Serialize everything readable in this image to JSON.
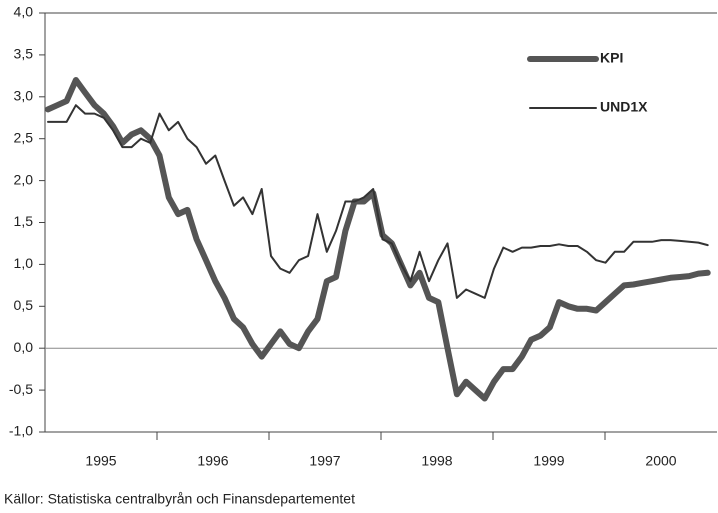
{
  "chart_data": {
    "type": "line",
    "source": "Källor: Statistiska centralbyrån och Finansdepartementet",
    "categories": [
      "1995",
      "1996",
      "1997",
      "1998",
      "1999",
      "2000"
    ],
    "xlim": [
      1995,
      2001
    ],
    "x": [
      1995.0,
      1995.083,
      1995.167,
      1995.25,
      1995.333,
      1995.417,
      1995.5,
      1995.583,
      1995.667,
      1995.75,
      1995.833,
      1995.917,
      1996.0,
      1996.083,
      1996.167,
      1996.25,
      1996.333,
      1996.417,
      1996.5,
      1996.583,
      1996.667,
      1996.75,
      1996.833,
      1996.917,
      1997.0,
      1997.083,
      1997.167,
      1997.25,
      1997.333,
      1997.417,
      1997.5,
      1997.583,
      1997.667,
      1997.75,
      1997.833,
      1997.917,
      1998.0,
      1998.083,
      1998.167,
      1998.25,
      1998.333,
      1998.417,
      1998.5,
      1998.583,
      1998.667,
      1998.75,
      1998.833,
      1998.917,
      1999.0,
      1999.083,
      1999.167,
      1999.25,
      1999.333,
      1999.417,
      1999.5,
      1999.583,
      1999.667,
      1999.75,
      1999.833,
      1999.917,
      2000.0,
      2000.083,
      2000.167,
      2000.25,
      2000.333,
      2000.417,
      2000.5,
      2000.583,
      2000.667,
      2000.75,
      2000.833,
      2000.917
    ],
    "ylim": [
      -1,
      4
    ],
    "yticks": [
      {
        "value": -1,
        "label": "-1,0"
      },
      {
        "value": -0.5,
        "label": "-0,5"
      },
      {
        "value": 0,
        "label": "0,0"
      },
      {
        "value": 0.5,
        "label": "0,5"
      },
      {
        "value": 1,
        "label": "1,0"
      },
      {
        "value": 1.5,
        "label": "1,5"
      },
      {
        "value": 2,
        "label": "2,0"
      },
      {
        "value": 2.5,
        "label": "2,5"
      },
      {
        "value": 3,
        "label": "3,0"
      },
      {
        "value": 3.5,
        "label": "3,5"
      },
      {
        "value": 4,
        "label": "4,0"
      }
    ],
    "grid": false,
    "legend": "upper right",
    "series": [
      {
        "name": "KPI",
        "color": "#555555",
        "width": 6,
        "values": [
          2.85,
          2.9,
          2.95,
          3.2,
          3.05,
          2.9,
          2.8,
          2.65,
          2.45,
          2.55,
          2.6,
          2.5,
          2.3,
          1.8,
          1.6,
          1.65,
          1.3,
          1.05,
          0.8,
          0.6,
          0.35,
          0.25,
          0.05,
          -0.1,
          0.05,
          0.2,
          0.05,
          0.0,
          0.2,
          0.35,
          0.8,
          0.85,
          1.4,
          1.75,
          1.75,
          1.85,
          1.35,
          1.25,
          1.0,
          0.75,
          0.9,
          0.6,
          0.55,
          0.0,
          -0.55,
          -0.4,
          -0.5,
          -0.6,
          -0.4,
          -0.25,
          -0.25,
          -0.1,
          0.1,
          0.15,
          0.25,
          0.55,
          0.5,
          0.47,
          0.47,
          0.45,
          0.55,
          0.65,
          0.75,
          0.76,
          0.78,
          0.8,
          0.82,
          0.84,
          0.85,
          0.86,
          0.89,
          0.9
        ]
      },
      {
        "name": "UND1X",
        "color": "#333333",
        "width": 2,
        "values": [
          2.7,
          2.7,
          2.7,
          2.9,
          2.8,
          2.8,
          2.75,
          2.6,
          2.4,
          2.4,
          2.5,
          2.45,
          2.8,
          2.6,
          2.7,
          2.5,
          2.4,
          2.2,
          2.3,
          2.0,
          1.7,
          1.8,
          1.6,
          1.9,
          1.1,
          0.95,
          0.9,
          1.05,
          1.1,
          1.6,
          1.15,
          1.4,
          1.75,
          1.75,
          1.8,
          1.9,
          1.3,
          1.25,
          1.0,
          0.8,
          1.15,
          0.8,
          1.05,
          1.25,
          0.6,
          0.7,
          0.65,
          0.6,
          0.95,
          1.2,
          1.15,
          1.2,
          1.2,
          1.22,
          1.22,
          1.24,
          1.22,
          1.22,
          1.15,
          1.05,
          1.02,
          1.15,
          1.15,
          1.27,
          1.27,
          1.27,
          1.29,
          1.29,
          1.28,
          1.27,
          1.26,
          1.23
        ]
      }
    ]
  }
}
